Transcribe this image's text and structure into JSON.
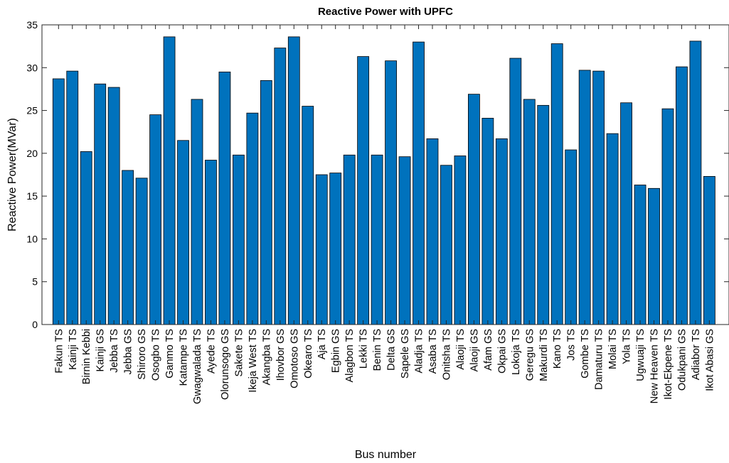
{
  "chart_data": {
    "type": "bar",
    "title": "Reactive Power with UPFC",
    "xlabel": "Bus number",
    "ylabel": "Reactive Power(MVar)",
    "ylim": [
      0,
      35
    ],
    "yticks": [
      "0",
      "5",
      "10",
      "15",
      "20",
      "25",
      "30",
      "35"
    ],
    "grid": false,
    "bar_color": "#0072BD",
    "categories": [
      "Fakun TS",
      "Kainji TS",
      "Birnin Kebbi",
      "Kainji GS",
      "Jebba TS",
      "Jebba GS",
      "Shiroro GS",
      "Osogbo TS",
      "Ganmo TS",
      "Katampe TS",
      "Gwagwalada TS",
      "Ayede TS",
      "Olorunsogo GS",
      "Sakete TS",
      "Ikeja West TS",
      "Akangba TS",
      "Ihovbor GS",
      "Omotoso GS",
      "Okearo TS",
      "Aja TS",
      "Egbin GS",
      "Alagbon TS",
      "Lekki TS",
      "Benin TS",
      "Delta GS",
      "Sapele GS",
      "Aladja TS",
      "Asaba TS",
      "Onitsha TS",
      "Alaoji TS",
      "Alaoji GS",
      "Afam GS",
      "Okpai GS",
      "Lokoja TS",
      "Geregu GS",
      "Makurdi TS",
      "Kano TS",
      "Jos TS",
      "Gombe TS",
      "Damaturu TS",
      "Molai TS",
      "Yola TS",
      "Ugwuaji TS",
      "New Heaven TS",
      "Ikot-Ekpene TS",
      "Odukpani GS",
      "Adiabor TS",
      "Ikot Abasi GS"
    ],
    "values": [
      28.7,
      29.6,
      20.2,
      28.1,
      27.7,
      18.0,
      17.1,
      24.5,
      33.6,
      21.5,
      26.3,
      19.2,
      29.5,
      19.8,
      24.7,
      28.5,
      32.3,
      33.6,
      25.5,
      17.5,
      17.7,
      19.8,
      31.3,
      19.8,
      30.8,
      19.6,
      33.0,
      21.7,
      18.6,
      19.7,
      26.9,
      24.1,
      21.7,
      31.1,
      26.3,
      25.6,
      32.8,
      20.4,
      29.7,
      29.6,
      22.3,
      25.9,
      16.3,
      15.9,
      25.2,
      30.1,
      33.1,
      17.3
    ]
  }
}
